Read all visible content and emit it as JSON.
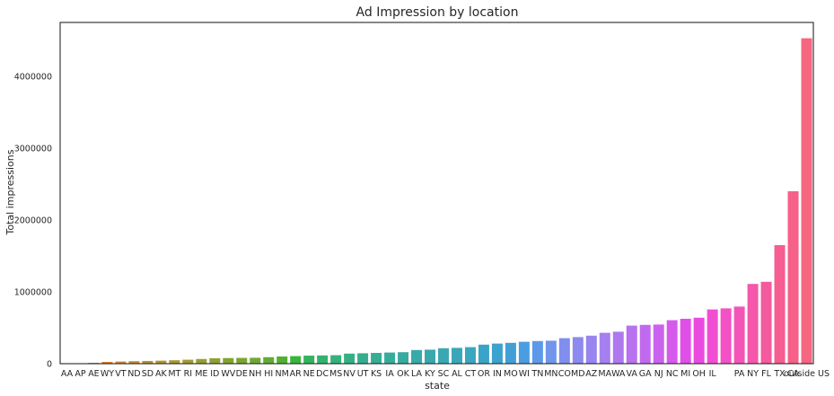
{
  "chart_data": {
    "type": "bar",
    "title": "Ad Impression by location",
    "xlabel": "state",
    "ylabel": "Total impressions",
    "ylim": [
      0,
      4750000
    ],
    "yticks": [
      0,
      1000000,
      2000000,
      3000000,
      4000000
    ],
    "ytick_labels": [
      "0",
      "1000000",
      "2000000",
      "3000000",
      "4000000"
    ],
    "grid": false,
    "categories": [
      "AA",
      "AP",
      "AE",
      "WY",
      "VT",
      "ND",
      "SD",
      "AK",
      "MT",
      "RI",
      "ME",
      "ID",
      "WV",
      "DE",
      "NH",
      "HI",
      "NM",
      "AR",
      "NE",
      "DC",
      "MS",
      "NV",
      "UT",
      "KS",
      "IA",
      "OK",
      "LA",
      "KY",
      "SC",
      "AL",
      "CT",
      "OR",
      "IN",
      "MO",
      "WI",
      "TN",
      "MN",
      "CO",
      "MD",
      "AZ",
      "MA",
      "WA",
      "VA",
      "GA",
      "NJ",
      "NC",
      "MI",
      "OH",
      "IL",
      "",
      "PA",
      "NY",
      "FL",
      "TX",
      "CA",
      "outside US"
    ],
    "values": [
      1000,
      3000,
      12000,
      25000,
      30000,
      35000,
      38000,
      42000,
      48000,
      55000,
      65000,
      75000,
      78000,
      80000,
      82000,
      90000,
      100000,
      105000,
      112000,
      115000,
      118000,
      140000,
      145000,
      150000,
      155000,
      160000,
      190000,
      195000,
      215000,
      220000,
      230000,
      265000,
      280000,
      290000,
      305000,
      315000,
      320000,
      355000,
      370000,
      390000,
      430000,
      445000,
      530000,
      540000,
      545000,
      605000,
      625000,
      640000,
      755000,
      770000,
      795000,
      1110000,
      1140000,
      1650000,
      2400000,
      4530000
    ],
    "colors": [
      "#f77189",
      "#f7745f",
      "#f17a33",
      "#e0812f",
      "#d28832",
      "#c58d31",
      "#bb9131",
      "#b19531",
      "#a89831",
      "#9f9b31",
      "#969e31",
      "#8da131",
      "#84a331",
      "#79a531",
      "#6ea831",
      "#62ab31",
      "#50b131",
      "#39b43c",
      "#33b35e",
      "#34b26f",
      "#35b17b",
      "#35b085",
      "#36ae8d",
      "#36ad94",
      "#37ac9b",
      "#37aba1",
      "#38aaa8",
      "#38a9ad",
      "#39a8b3",
      "#39a7b9",
      "#3aa6bf",
      "#3ba4c6",
      "#3ca2ce",
      "#40a0d6",
      "#4a9de0",
      "#5c99e8",
      "#7194ec",
      "#808fee",
      "#8d8aef",
      "#9985ef",
      "#a47fef",
      "#ae78ef",
      "#b871ef",
      "#c16aef",
      "#cb62ee",
      "#d55aec",
      "#e050e8",
      "#ea4ae0",
      "#f14dd3",
      "#f351c5",
      "#f454b8",
      "#f457ab",
      "#f45a9e",
      "#f55d93",
      "#f66089",
      "#f66680"
    ]
  }
}
